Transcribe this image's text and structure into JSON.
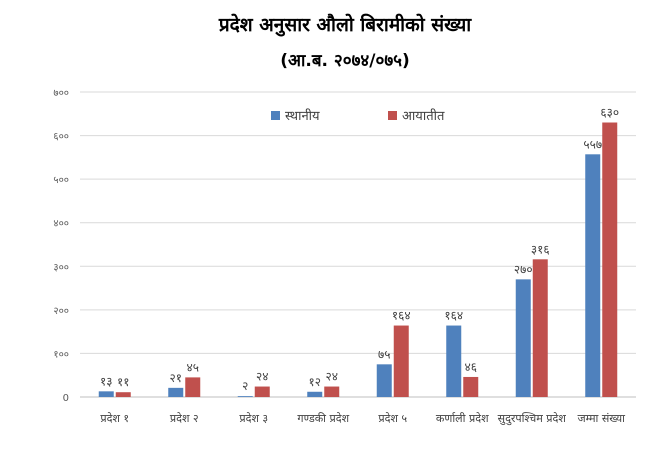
{
  "chart_data": {
    "type": "bar",
    "title": "प्रदेश अनुसार औलो बिरामीको संख्या",
    "subtitle": "(आ.ब. २०७४/०७५)",
    "categories": [
      "प्रदेश १",
      "प्रदेश २",
      "प्रदेश ३",
      "गण्डकी प्रदेश",
      "प्रदेश ५",
      "कर्णाली प्रदेश",
      "सुदुरपश्चिम प्रदेश",
      "जम्मा संख्या"
    ],
    "series": [
      {
        "name": "स्थानीय",
        "color": "#4F81BD",
        "values": [
          13,
          21,
          2,
          12,
          75,
          164,
          270,
          557
        ],
        "labels": [
          "१३",
          "२१",
          "२",
          "१२",
          "७५",
          "१६४",
          "२७०",
          "५५७"
        ]
      },
      {
        "name": "आयातीत",
        "color": "#C0504D",
        "values": [
          11,
          45,
          24,
          24,
          164,
          46,
          316,
          630
        ],
        "labels": [
          "११",
          "४५",
          "२४",
          "२४",
          "१६४",
          "४६",
          "३१६",
          "६३०"
        ]
      }
    ],
    "ylim": [
      0,
      700
    ],
    "yticks": [
      0,
      100,
      200,
      300,
      400,
      500,
      600,
      700
    ],
    "ytick_labels": [
      "0",
      "१००",
      "२००",
      "३००",
      "४००",
      "५००",
      "६००",
      "७००"
    ],
    "grid": true,
    "legend_position": "top"
  }
}
